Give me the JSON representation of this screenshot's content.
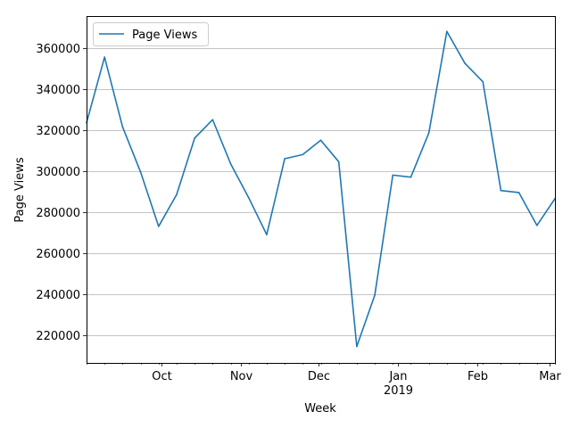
{
  "chart_data": {
    "type": "line",
    "xlabel": "Week",
    "ylabel": "Page Views",
    "grid": "horizontal",
    "legend_position": "top-left",
    "ylim": [
      206500,
      375500
    ],
    "x_tick_labels": [
      {
        "label": "Oct",
        "sub": ""
      },
      {
        "label": "Nov",
        "sub": ""
      },
      {
        "label": "Dec",
        "sub": ""
      },
      {
        "label": "Jan",
        "sub": "2019"
      },
      {
        "label": "Feb",
        "sub": ""
      },
      {
        "label": "Mar",
        "sub": ""
      }
    ],
    "y_ticks": [
      220000,
      240000,
      260000,
      280000,
      300000,
      320000,
      340000,
      360000
    ],
    "series": [
      {
        "name": "Page Views",
        "color": "#1f77b4",
        "weeks": [
          "2018-09-02",
          "2018-09-09",
          "2018-09-16",
          "2018-09-23",
          "2018-09-30",
          "2018-10-07",
          "2018-10-14",
          "2018-10-21",
          "2018-10-28",
          "2018-11-04",
          "2018-11-11",
          "2018-11-18",
          "2018-11-25",
          "2018-12-02",
          "2018-12-09",
          "2018-12-16",
          "2018-12-23",
          "2018-12-30",
          "2019-01-06",
          "2019-01-13",
          "2019-01-20",
          "2019-01-27",
          "2019-02-03",
          "2019-02-10",
          "2019-02-17",
          "2019-02-24",
          "2019-03-03"
        ],
        "values": [
          323500,
          355500,
          321500,
          299500,
          273000,
          288500,
          316000,
          325000,
          303500,
          287000,
          269000,
          306000,
          308000,
          315000,
          304500,
          214500,
          239500,
          298000,
          297000,
          318500,
          368000,
          352500,
          343500,
          290500,
          289500,
          273500,
          286500
        ]
      }
    ]
  }
}
